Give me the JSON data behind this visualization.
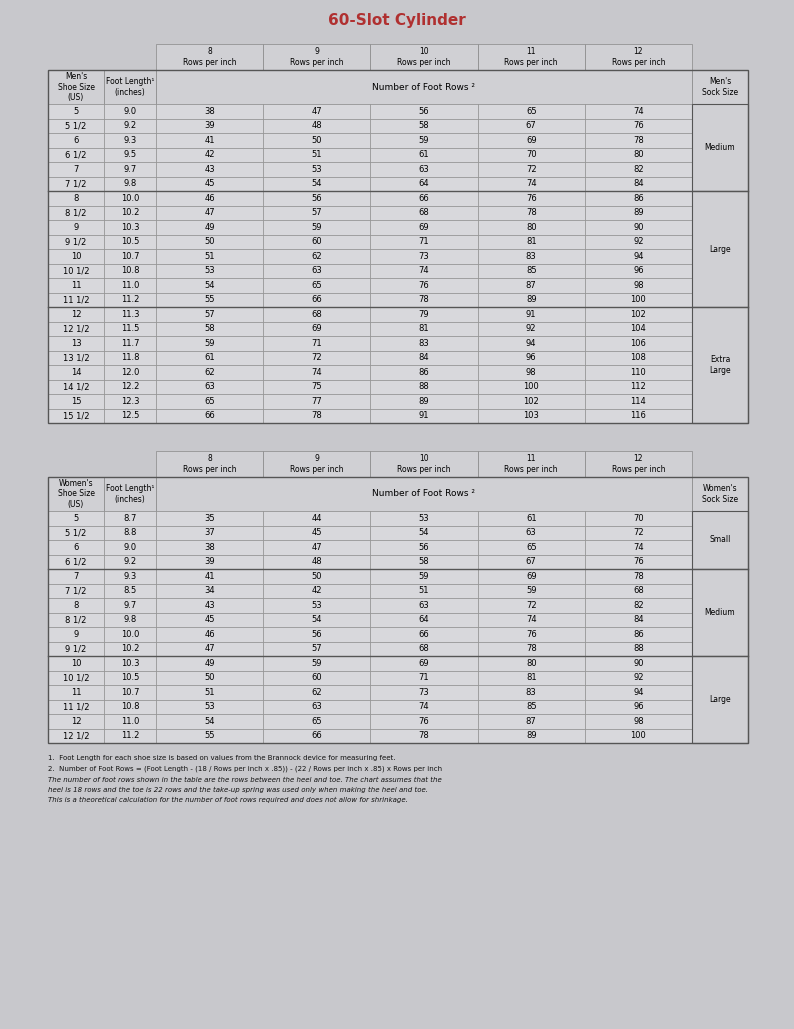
{
  "title": "60-Slot Cylinder",
  "title_color": "#b03030",
  "bg_color": "#c8c8cc",
  "cell_bg": "#d8d8dc",
  "header_bg": "#d0d0d4",
  "border_color": "#888888",
  "thick_border": "#555555",
  "header_cols": [
    "8\nRows per inch",
    "9\nRows per inch",
    "10\nRows per inch",
    "11\nRows per inch",
    "12\nRows per inch"
  ],
  "mens_data": [
    [
      "5",
      "9.0",
      "38",
      "47",
      "56",
      "65",
      "74"
    ],
    [
      "5 1/2",
      "9.2",
      "39",
      "48",
      "58",
      "67",
      "76"
    ],
    [
      "6",
      "9.3",
      "41",
      "50",
      "59",
      "69",
      "78"
    ],
    [
      "6 1/2",
      "9.5",
      "42",
      "51",
      "61",
      "70",
      "80"
    ],
    [
      "7",
      "9.7",
      "43",
      "53",
      "63",
      "72",
      "82"
    ],
    [
      "7 1/2",
      "9.8",
      "45",
      "54",
      "64",
      "74",
      "84"
    ],
    [
      "8",
      "10.0",
      "46",
      "56",
      "66",
      "76",
      "86"
    ],
    [
      "8 1/2",
      "10.2",
      "47",
      "57",
      "68",
      "78",
      "89"
    ],
    [
      "9",
      "10.3",
      "49",
      "59",
      "69",
      "80",
      "90"
    ],
    [
      "9 1/2",
      "10.5",
      "50",
      "60",
      "71",
      "81",
      "92"
    ],
    [
      "10",
      "10.7",
      "51",
      "62",
      "73",
      "83",
      "94"
    ],
    [
      "10 1/2",
      "10.8",
      "53",
      "63",
      "74",
      "85",
      "96"
    ],
    [
      "11",
      "11.0",
      "54",
      "65",
      "76",
      "87",
      "98"
    ],
    [
      "11 1/2",
      "11.2",
      "55",
      "66",
      "78",
      "89",
      "100"
    ],
    [
      "12",
      "11.3",
      "57",
      "68",
      "79",
      "91",
      "102"
    ],
    [
      "12 1/2",
      "11.5",
      "58",
      "69",
      "81",
      "92",
      "104"
    ],
    [
      "13",
      "11.7",
      "59",
      "71",
      "83",
      "94",
      "106"
    ],
    [
      "13 1/2",
      "11.8",
      "61",
      "72",
      "84",
      "96",
      "108"
    ],
    [
      "14",
      "12.0",
      "62",
      "74",
      "86",
      "98",
      "110"
    ],
    [
      "14 1/2",
      "12.2",
      "63",
      "75",
      "88",
      "100",
      "112"
    ],
    [
      "15",
      "12.3",
      "65",
      "77",
      "89",
      "102",
      "114"
    ],
    [
      "15 1/2",
      "12.5",
      "66",
      "78",
      "91",
      "103",
      "116"
    ]
  ],
  "mens_sock_sizes": [
    [
      "Medium",
      0,
      5
    ],
    [
      "Large",
      6,
      13
    ],
    [
      "Extra\nLarge",
      14,
      21
    ]
  ],
  "womens_data": [
    [
      "5",
      "8.7",
      "35",
      "44",
      "53",
      "61",
      "70"
    ],
    [
      "5 1/2",
      "8.8",
      "37",
      "45",
      "54",
      "63",
      "72"
    ],
    [
      "6",
      "9.0",
      "38",
      "47",
      "56",
      "65",
      "74"
    ],
    [
      "6 1/2",
      "9.2",
      "39",
      "48",
      "58",
      "67",
      "76"
    ],
    [
      "7",
      "9.3",
      "41",
      "50",
      "59",
      "69",
      "78"
    ],
    [
      "7 1/2",
      "8.5",
      "34",
      "42",
      "51",
      "59",
      "68"
    ],
    [
      "8",
      "9.7",
      "43",
      "53",
      "63",
      "72",
      "82"
    ],
    [
      "8 1/2",
      "9.8",
      "45",
      "54",
      "64",
      "74",
      "84"
    ],
    [
      "9",
      "10.0",
      "46",
      "56",
      "66",
      "76",
      "86"
    ],
    [
      "9 1/2",
      "10.2",
      "47",
      "57",
      "68",
      "78",
      "88"
    ],
    [
      "10",
      "10.3",
      "49",
      "59",
      "69",
      "80",
      "90"
    ],
    [
      "10 1/2",
      "10.5",
      "50",
      "60",
      "71",
      "81",
      "92"
    ],
    [
      "11",
      "10.7",
      "51",
      "62",
      "73",
      "83",
      "94"
    ],
    [
      "11 1/2",
      "10.8",
      "53",
      "63",
      "74",
      "85",
      "96"
    ],
    [
      "12",
      "11.0",
      "54",
      "65",
      "76",
      "87",
      "98"
    ],
    [
      "12 1/2",
      "11.2",
      "55",
      "66",
      "78",
      "89",
      "100"
    ]
  ],
  "womens_sock_sizes": [
    [
      "Small",
      0,
      3
    ],
    [
      "Medium",
      4,
      9
    ],
    [
      "Large",
      10,
      15
    ]
  ],
  "footnote1": "1.  Foot Length for each shoe size is based on values from the Brannock device for measuring feet.",
  "footnote2": "2.  Number of Foot Rows = (Foot Length - (18 / Rows per inch x .85)) - (22 / Rows per inch x .85) x Rows per inch",
  "footnote3_lines": [
    "The number of foot rows shown in the table are the rows between the heel and toe. The chart assumes that the",
    "heel is 18 rows and the toe is 22 rows and the take-up spring was used only when making the heel and toe.",
    "This is a theoretical calculation for the number of foot rows required and does not allow for shrinkage."
  ]
}
